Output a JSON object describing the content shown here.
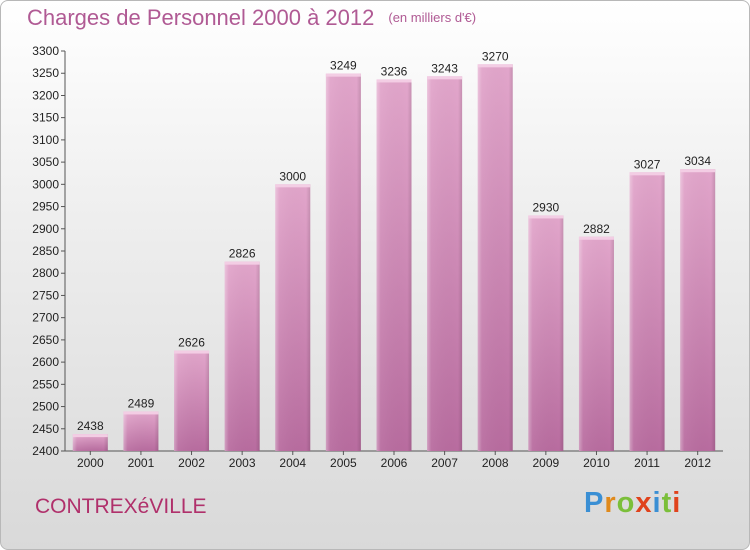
{
  "title": "Charges de Personnel 2000 à 2012",
  "unit": "(en milliers d'€)",
  "town": "CONTREXéVILLE",
  "logo": {
    "letters": [
      "P",
      "r",
      "o",
      "x",
      "i",
      "t",
      "i"
    ],
    "colors": [
      "#3a8fd4",
      "#e08a1c",
      "#7bbf3a",
      "#e0421c",
      "#3a8fd4",
      "#7bbf3a",
      "#e0421c"
    ]
  },
  "colors": {
    "bar": "#d98fbd",
    "bar_dark": "#b9689e",
    "title": "#b05a94",
    "town": "#b0306b"
  },
  "chart_data": {
    "type": "bar",
    "title": "Charges de Personnel 2000 à 2012",
    "ylabel": "(en milliers d'€)",
    "categories": [
      "2000",
      "2001",
      "2002",
      "2003",
      "2004",
      "2005",
      "2006",
      "2007",
      "2008",
      "2009",
      "2010",
      "2011",
      "2012"
    ],
    "values": [
      2438,
      2489,
      2626,
      2826,
      3000,
      3249,
      3236,
      3243,
      3270,
      2930,
      2882,
      3027,
      3034
    ],
    "ylim": [
      2400,
      3300
    ],
    "yticks": [
      2400,
      2450,
      2500,
      2550,
      2600,
      2650,
      2700,
      2750,
      2800,
      2850,
      2900,
      2950,
      3000,
      3050,
      3100,
      3150,
      3200,
      3250,
      3300
    ],
    "grid": false,
    "legend": "none"
  }
}
